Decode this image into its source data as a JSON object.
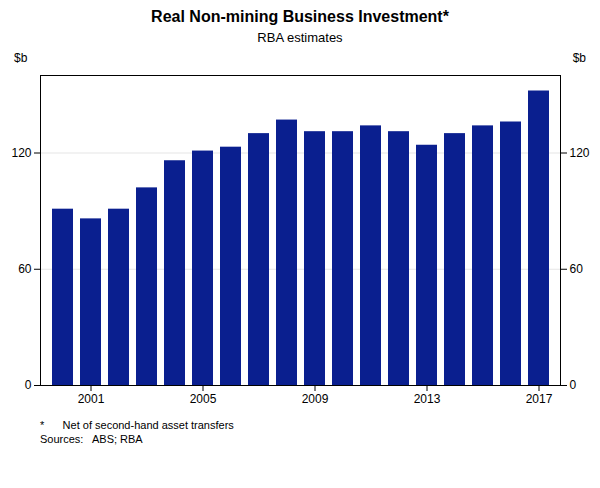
{
  "chart_data": {
    "type": "bar",
    "title": "Real Non-mining Business Investment*",
    "subtitle": "RBA estimates",
    "categories": [
      null,
      "2001",
      null,
      null,
      null,
      "2005",
      null,
      null,
      null,
      "2009",
      null,
      null,
      null,
      "2013",
      null,
      null,
      null,
      "2017"
    ],
    "values": [
      91,
      86,
      91,
      102,
      116,
      121,
      123,
      130,
      137,
      131,
      131,
      134,
      131,
      124,
      130,
      134,
      136,
      152
    ],
    "color": "#0a1f8f",
    "ylabel": "$b",
    "y2label": "$b",
    "ylim": [
      0,
      160
    ],
    "yticks": [
      0,
      60,
      120
    ],
    "y2lim": [
      0,
      160
    ],
    "y2ticks": [
      0,
      60,
      120
    ],
    "grid": true,
    "annotations": [
      "*      Net of second-hand asset transfers",
      "Sources:   ABS; RBA"
    ]
  }
}
